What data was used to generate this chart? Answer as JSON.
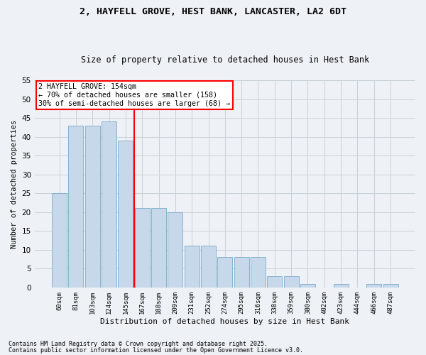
{
  "title_line1": "2, HAYFELL GROVE, HEST BANK, LANCASTER, LA2 6DT",
  "title_line2": "Size of property relative to detached houses in Hest Bank",
  "xlabel": "Distribution of detached houses by size in Hest Bank",
  "ylabel": "Number of detached properties",
  "categories": [
    "60sqm",
    "81sqm",
    "103sqm",
    "124sqm",
    "145sqm",
    "167sqm",
    "188sqm",
    "209sqm",
    "231sqm",
    "252sqm",
    "274sqm",
    "295sqm",
    "316sqm",
    "338sqm",
    "359sqm",
    "380sqm",
    "402sqm",
    "423sqm",
    "444sqm",
    "466sqm",
    "487sqm"
  ],
  "values": [
    25,
    43,
    43,
    44,
    39,
    21,
    21,
    20,
    11,
    11,
    8,
    8,
    8,
    3,
    3,
    1,
    0,
    1,
    0,
    1,
    1
  ],
  "bar_color": "#c8d8eb",
  "bar_edge_color": "#7aaac8",
  "grid_color": "#c8d0d8",
  "vline_x": 4.5,
  "vline_color": "red",
  "annotation_text": "2 HAYFELL GROVE: 154sqm\n← 70% of detached houses are smaller (158)\n30% of semi-detached houses are larger (68) →",
  "annotation_box_color": "red",
  "annotation_fill": "white",
  "ylim": [
    0,
    55
  ],
  "yticks": [
    0,
    5,
    10,
    15,
    20,
    25,
    30,
    35,
    40,
    45,
    50,
    55
  ],
  "footnote1": "Contains HM Land Registry data © Crown copyright and database right 2025.",
  "footnote2": "Contains public sector information licensed under the Open Government Licence v3.0.",
  "bg_color": "#eef2f6"
}
